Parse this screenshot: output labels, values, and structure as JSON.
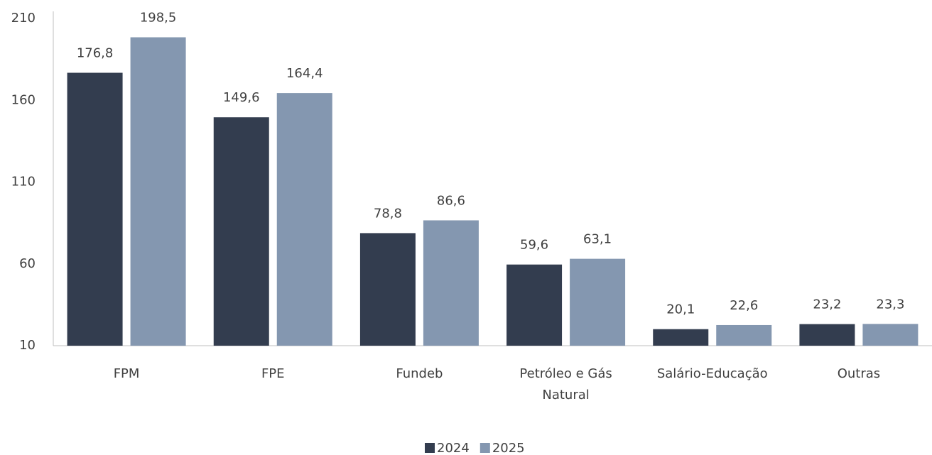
{
  "chart_data": {
    "type": "bar",
    "categories": [
      "FPM",
      "FPE",
      "Fundeb",
      "Petróleo e Gás Natural",
      "Salário-Educação",
      "Outras"
    ],
    "series": [
      {
        "name": "2024",
        "color": "#333d4f",
        "values": [
          176.8,
          149.6,
          78.8,
          59.6,
          20.1,
          23.2
        ],
        "value_labels": [
          "176,8",
          "149,6",
          "78,8",
          "59,6",
          "20,1",
          "23,2"
        ]
      },
      {
        "name": "2025",
        "color": "#8497b0",
        "values": [
          198.5,
          164.4,
          86.6,
          63.1,
          22.6,
          23.3
        ],
        "value_labels": [
          "198,5",
          "164,4",
          "86,6",
          "63,1",
          "22,6",
          "23,3"
        ]
      }
    ],
    "ylim": [
      10,
      210
    ],
    "yticks": [
      10,
      60,
      110,
      160,
      210
    ],
    "grid": false,
    "legend": "bottom"
  }
}
